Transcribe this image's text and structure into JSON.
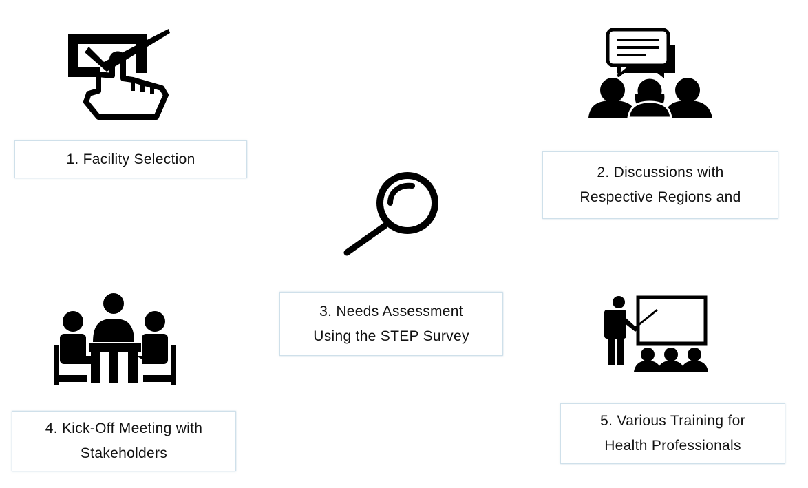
{
  "steps": [
    {
      "lines": [
        "1. Facility Selection"
      ],
      "icon": "checkbox-hand-icon"
    },
    {
      "lines": [
        "2. Discussions with",
        "Respective Regions and"
      ],
      "icon": "discussion-group-icon"
    },
    {
      "lines": [
        "3. Needs Assessment",
        "Using the STEP Survey"
      ],
      "icon": "magnifier-icon"
    },
    {
      "lines": [
        "4. Kick-Off Meeting with",
        "Stakeholders"
      ],
      "icon": "meeting-table-icon"
    },
    {
      "lines": [
        "5. Various Training for",
        "Health Professionals"
      ],
      "icon": "presentation-training-icon"
    }
  ],
  "colors": {
    "icon": "#000000",
    "box_border": "#cfe0ea",
    "text": "#111111"
  }
}
